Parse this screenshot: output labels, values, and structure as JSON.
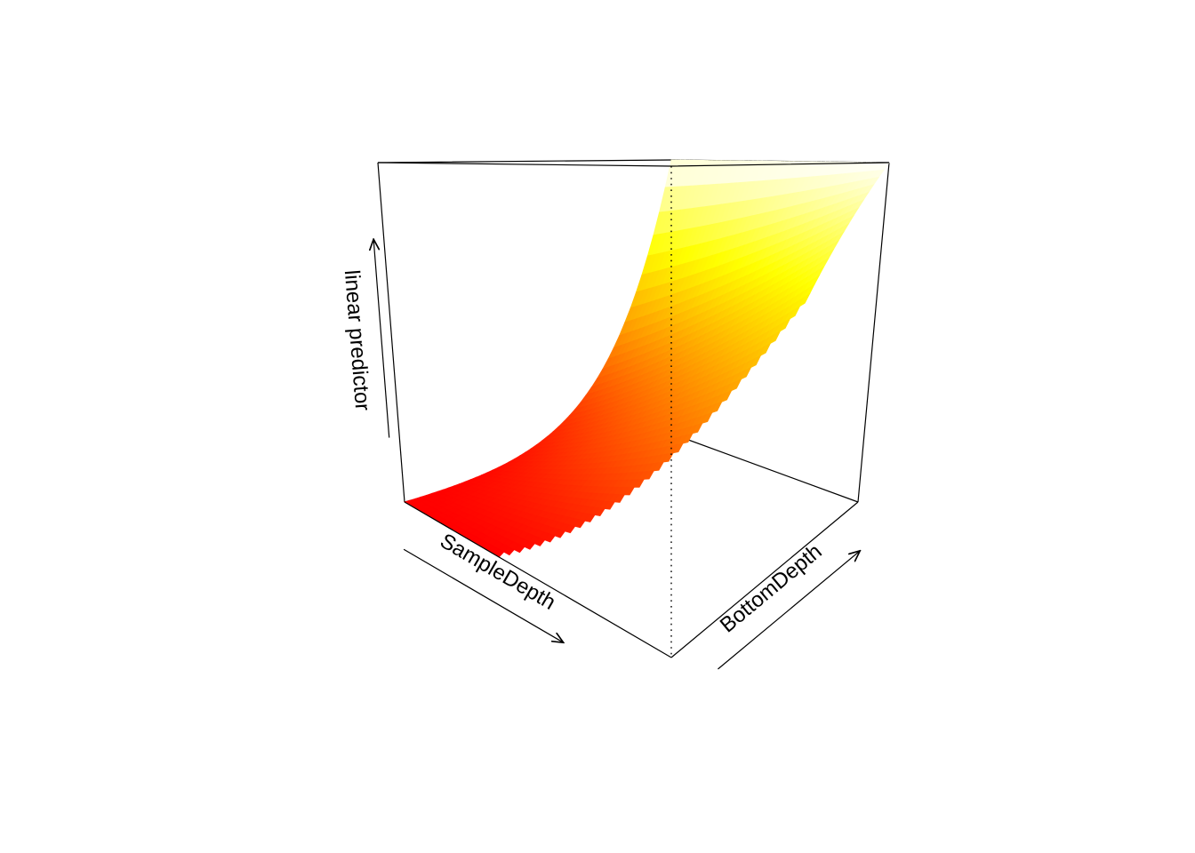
{
  "figure": {
    "background": "#FFFFFF",
    "style_note": "R persp / vis.gam style 3D perspective surface plot, no tick labels"
  },
  "chart_data": {
    "type": "surface",
    "title": "",
    "xlabel": "SampleDepth",
    "ylabel": "BottomDepth",
    "zlabel": "linear predictor",
    "axes": {
      "tick_labels": "none",
      "arrows": true,
      "box": true
    },
    "surface": {
      "description": "Linear predictor is low (red) at shallow BottomDepth along the SampleDepth edge and rises steeply (orange, yellow, white) toward maximum BottomDepth; region with SampleDepth much greater than BottomDepth is not drawn (no data).",
      "z_normalized_formula": "z(s,b) = (1-s)*f(b) + s*b, with f(b) = (exp(k*b)-1)/(exp(k)-1)",
      "steepness": 5,
      "grid_n": 48,
      "mask_threshold": 0.35,
      "mask_rule": "omit facets where s - b > 0.35",
      "z_range": [
        0,
        1
      ]
    },
    "palette": {
      "name": "heat",
      "low": "#FF0000",
      "mid": "#FFFF00",
      "high": "#FFFFFF",
      "mid_point": 0.68
    },
    "annotations": [
      {
        "type": "vertical-dotted-line",
        "location": "front corner of bounding box, full height"
      }
    ]
  }
}
